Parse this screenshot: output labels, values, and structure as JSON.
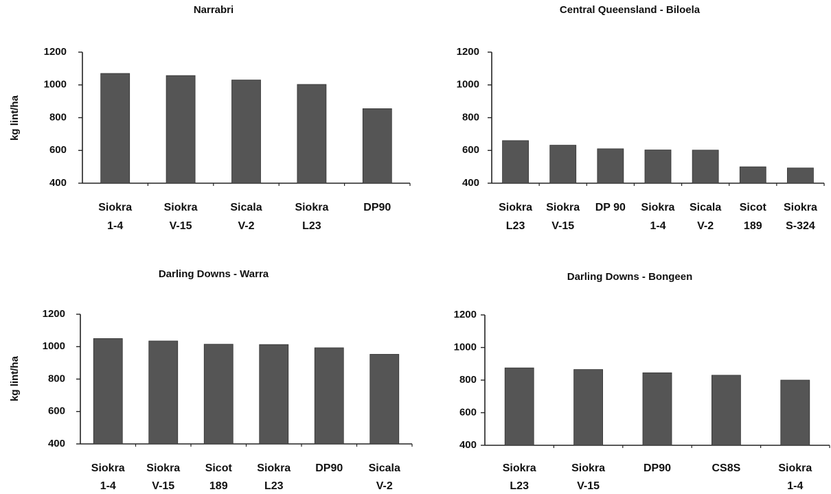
{
  "chart_data": [
    {
      "type": "bar",
      "title": "Narrabri",
      "ylabel": "kg lint/ha",
      "ylim": [
        400,
        1200
      ],
      "yticks": [
        "400",
        "600",
        "800",
        "1000",
        "1200"
      ],
      "categories": [
        [
          "Siokra",
          "1-4"
        ],
        [
          "Siokra",
          "V-15"
        ],
        [
          "Sicala",
          "V-2"
        ],
        [
          "Siokra",
          "L23"
        ],
        [
          "DP90"
        ]
      ],
      "values": [
        1070,
        1057,
        1030,
        1003,
        855
      ],
      "bar_color": "#555555"
    },
    {
      "type": "bar",
      "title": "Central Queensland - Biloela",
      "ylabel": "",
      "ylim": [
        400,
        1200
      ],
      "yticks": [
        "400",
        "600",
        "800",
        "1000",
        "1200"
      ],
      "categories": [
        [
          "Siokra",
          "L23"
        ],
        [
          "Siokra",
          "V-15"
        ],
        [
          "DP 90"
        ],
        [
          "Siokra",
          "1-4"
        ],
        [
          "Sicala",
          "V-2"
        ],
        [
          "Sicot",
          "189"
        ],
        [
          "Siokra",
          "S-324"
        ]
      ],
      "values": [
        660,
        632,
        610,
        603,
        602,
        500,
        493
      ],
      "bar_color": "#555555"
    },
    {
      "type": "bar",
      "title": "Darling Downs - Warra",
      "ylabel": "kg lint/ha",
      "ylim": [
        400,
        1200
      ],
      "yticks": [
        "400",
        "600",
        "800",
        "1000",
        "1200"
      ],
      "categories": [
        [
          "Siokra",
          "1-4"
        ],
        [
          "Siokra",
          "V-15"
        ],
        [
          "Sicot",
          "189"
        ],
        [
          "Siokra",
          "L23"
        ],
        [
          "DP90"
        ],
        [
          "Sicala",
          "V-2"
        ]
      ],
      "values": [
        1050,
        1035,
        1015,
        1013,
        993,
        953
      ],
      "bar_color": "#555555"
    },
    {
      "type": "bar",
      "title": "Darling Downs - Bongeen",
      "ylabel": "",
      "ylim": [
        400,
        1200
      ],
      "yticks": [
        "400",
        "600",
        "800",
        "1000",
        "1200"
      ],
      "categories": [
        [
          "Siokra",
          "L23"
        ],
        [
          "Siokra",
          "V-15"
        ],
        [
          "DP90"
        ],
        [
          "CS8S"
        ],
        [
          "Siokra",
          "1-4"
        ]
      ],
      "values": [
        875,
        865,
        845,
        830,
        800
      ],
      "bar_color": "#555555"
    }
  ]
}
